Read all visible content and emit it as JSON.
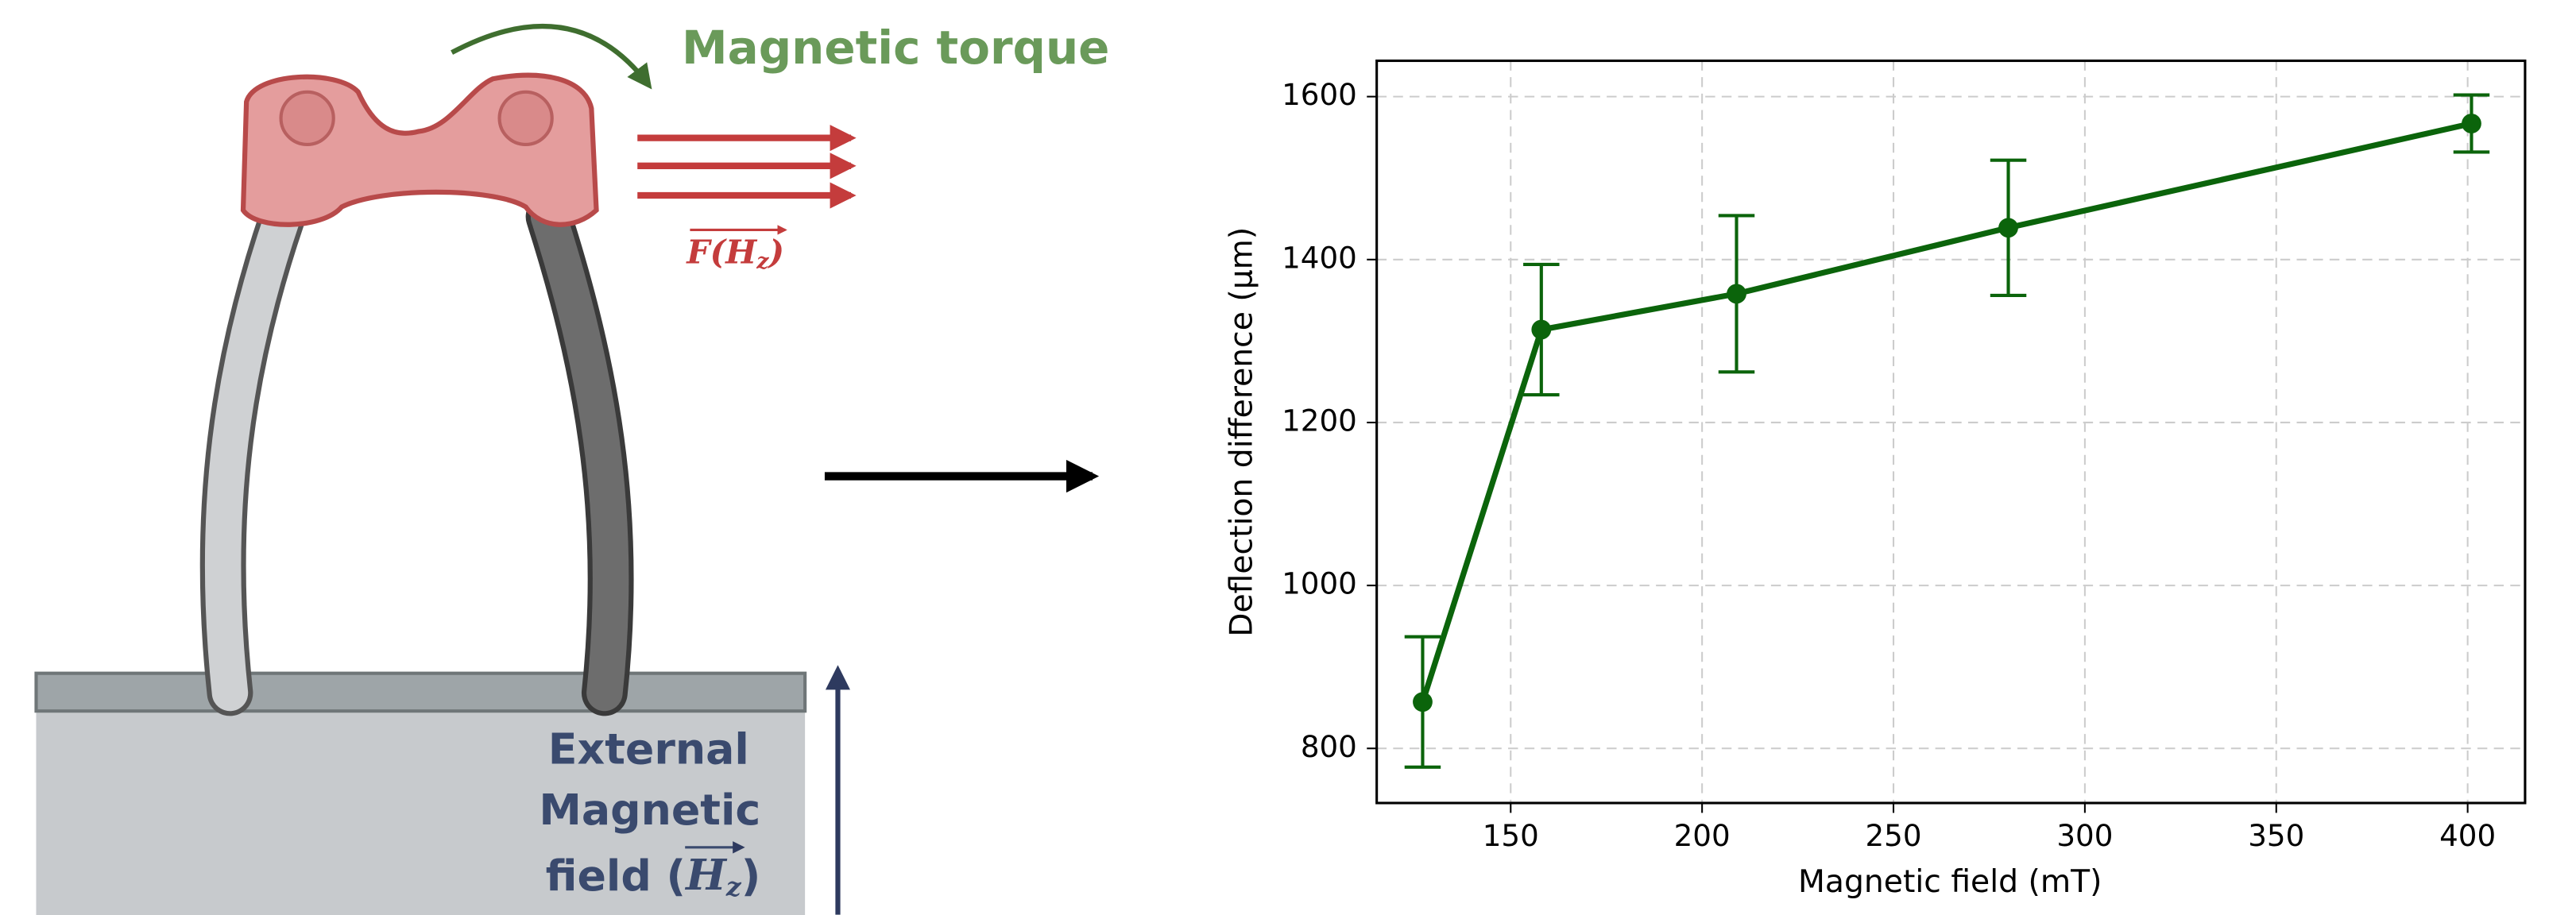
{
  "diagram": {
    "torque_label": "Magnetic torque",
    "force_label": [
      "F(H",
      "z",
      ")"
    ],
    "field_label": {
      "lines": [
        "External",
        "Magnetic"
      ],
      "last": [
        "field (",
        "H",
        "z",
        ")"
      ]
    }
  },
  "chart_data": {
    "type": "line",
    "xlabel": "Magnetic field (mT)",
    "ylabel": "Deflection difference (µm)",
    "x": [
      127,
      158,
      209,
      280,
      401
    ],
    "values": [
      857,
      1314,
      1358,
      1439,
      1567
    ],
    "errors": [
      80,
      80,
      96,
      83,
      35
    ],
    "color": "#0b640b",
    "xlim": [
      115,
      415
    ],
    "ylim": [
      733,
      1644
    ],
    "xticks": [
      150,
      200,
      250,
      300,
      350,
      400
    ],
    "yticks": [
      800,
      1000,
      1200,
      1400,
      1600
    ],
    "grid": true
  }
}
